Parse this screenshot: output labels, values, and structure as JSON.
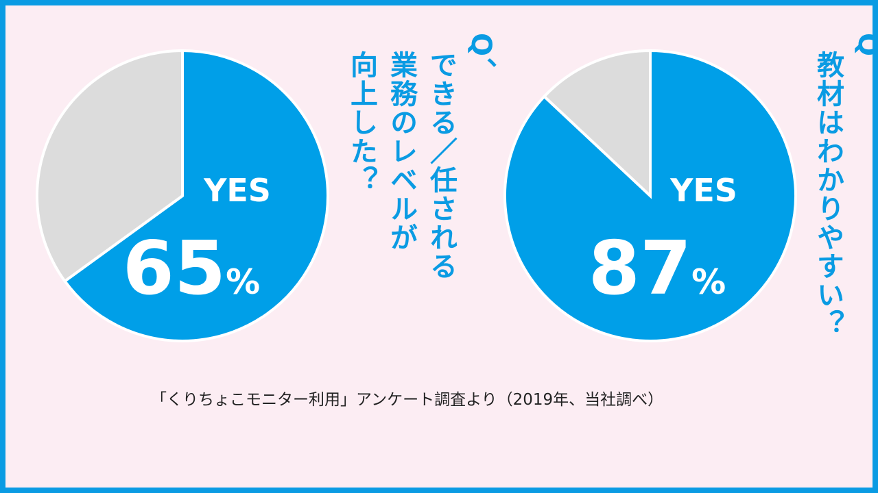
{
  "chart_data": [
    {
      "type": "pie",
      "question_prefix": "Q、",
      "question_lines": [
        "できる／任される",
        "業務のレベルが",
        "向上した？"
      ],
      "slices": [
        {
          "label": "YES",
          "value": 65,
          "color": "#009fe8"
        },
        {
          "label": "",
          "value": 35,
          "color": "#dcdcdc"
        }
      ],
      "yes_label": "YES",
      "value_text": "65",
      "unit": "%"
    },
    {
      "type": "pie",
      "question_prefix": "Q、",
      "question_lines": [
        "教材はわかりやすい？"
      ],
      "slices": [
        {
          "label": "YES",
          "value": 87,
          "color": "#009fe8"
        },
        {
          "label": "",
          "value": 13,
          "color": "#dcdcdc"
        }
      ],
      "yes_label": "YES",
      "value_text": "87",
      "unit": "%"
    }
  ],
  "caption": "「くりちょこモニター利用」アンケート調査より（2019年、当社調べ）",
  "colors": {
    "border": "#0a9be3",
    "background": "#fcedf3",
    "yes": "#009fe8",
    "no": "#dcdcdc",
    "question": "#0a9be3"
  }
}
